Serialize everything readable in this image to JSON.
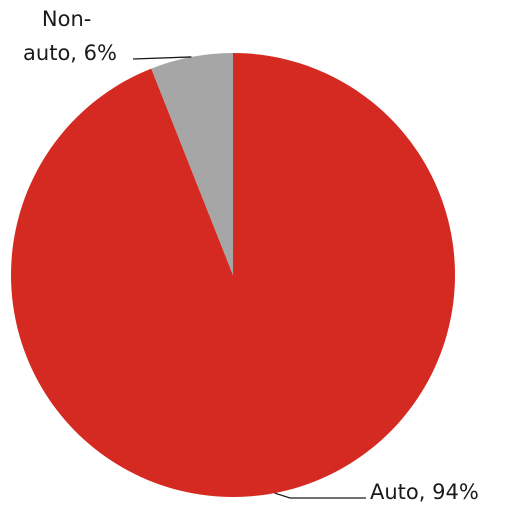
{
  "chart_data": {
    "type": "pie",
    "categories": [
      "Auto",
      "Non-auto"
    ],
    "values": [
      94,
      6
    ],
    "colors": [
      "#d42a21",
      "#a6a6a6"
    ],
    "labels": [
      {
        "lines": [
          "Auto, 94%"
        ]
      },
      {
        "lines": [
          "Non-",
          "auto, 6%"
        ]
      }
    ],
    "start_angle_deg": 0,
    "direction": "clockwise"
  }
}
